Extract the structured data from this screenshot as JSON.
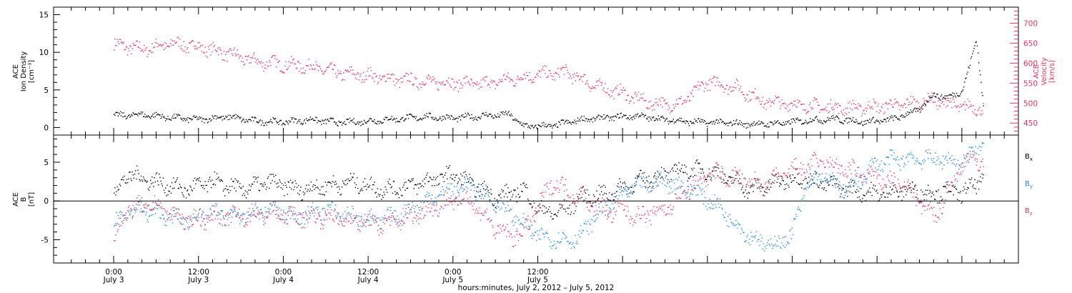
{
  "chart_data": [
    {
      "type": "scatter",
      "panel": "top",
      "ylabel_left": [
        "ACE",
        "Ion Density",
        "[cm⁻³]"
      ],
      "ylabel_right": [
        "ACE",
        "Velocity",
        "[km/s]"
      ],
      "ylim_left": [
        -1,
        16
      ],
      "ylim_right": [
        420,
        740
      ],
      "yticks_left": [
        "0",
        "5",
        "10",
        "15"
      ],
      "yticks_right": [
        "450",
        "500",
        "550",
        "600",
        "650",
        "700"
      ],
      "colors": {
        "density": "#000000",
        "velocity": "#e8315c"
      },
      "series": [
        {
          "name": "Ion Density",
          "axis": "left",
          "color": "#000000",
          "x_hours": [
            0,
            4,
            8,
            12,
            16,
            20,
            24,
            28,
            32,
            36,
            40,
            44,
            48,
            52,
            56,
            58,
            62,
            66,
            70,
            74,
            78,
            82,
            86,
            90,
            94,
            98,
            102,
            106,
            110,
            114,
            116,
            118,
            120,
            121,
            122,
            123
          ],
          "values": [
            1.6,
            1.8,
            1.4,
            1.1,
            1.5,
            0.9,
            0.8,
            1.1,
            0.7,
            0.9,
            1.2,
            1.5,
            1.3,
            1.6,
            1.8,
            0.2,
            0.3,
            1.1,
            1.4,
            1.6,
            1.1,
            0.8,
            0.7,
            0.5,
            0.6,
            1.0,
            1.2,
            0.8,
            1.1,
            2.5,
            4.5,
            4.0,
            5.0,
            8.0,
            12.0,
            3.0
          ]
        },
        {
          "name": "Velocity",
          "axis": "right",
          "color": "#e8315c",
          "x_hours": [
            0,
            4,
            8,
            12,
            16,
            20,
            24,
            28,
            32,
            36,
            40,
            44,
            48,
            52,
            56,
            60,
            64,
            68,
            72,
            76,
            80,
            84,
            88,
            92,
            96,
            100,
            104,
            108,
            112,
            116,
            120,
            123
          ],
          "values": [
            648,
            635,
            650,
            642,
            625,
            605,
            598,
            592,
            575,
            570,
            560,
            555,
            552,
            548,
            560,
            572,
            578,
            545,
            525,
            500,
            498,
            555,
            540,
            505,
            498,
            492,
            488,
            492,
            498,
            508,
            492,
            488
          ]
        }
      ]
    },
    {
      "type": "scatter",
      "panel": "bottom",
      "ylabel_left": [
        "ACE",
        "B",
        "[nT]"
      ],
      "ylim": [
        -8,
        8.5
      ],
      "yticks": [
        "-5",
        "0",
        "5"
      ],
      "legend": {
        "position": "right",
        "entries": [
          {
            "label": "B",
            "sub": "x",
            "color": "#000000"
          },
          {
            "label": "B",
            "sub": "y",
            "color": "#1e88e5"
          },
          {
            "label": "B",
            "sub": "z",
            "color": "#e8315c"
          }
        ]
      },
      "series": [
        {
          "name": "Bx",
          "color": "#000000",
          "x_hours": [
            0,
            2,
            6,
            10,
            14,
            18,
            22,
            26,
            30,
            34,
            38,
            42,
            44,
            46,
            48,
            50,
            54,
            58,
            60,
            62,
            64,
            66,
            70,
            74,
            78,
            80,
            84,
            88,
            90,
            92,
            96,
            100,
            104,
            108,
            112,
            116,
            118,
            120,
            123
          ],
          "values": [
            1.0,
            3.5,
            2.5,
            1.5,
            2.5,
            1.5,
            2.5,
            1.5,
            2.0,
            2.5,
            1.5,
            2.0,
            2.5,
            3.0,
            3.5,
            2.5,
            0.5,
            1.5,
            -1.0,
            -1.5,
            -1.0,
            0.5,
            1.0,
            2.5,
            3.5,
            4.0,
            4.0,
            2.5,
            1.5,
            2.0,
            3.0,
            2.5,
            1.5,
            1.0,
            1.5,
            1.0,
            1.5,
            1.0,
            3.0
          ]
        },
        {
          "name": "By",
          "color": "#1e88e5",
          "x_hours": [
            0,
            2,
            6,
            10,
            14,
            18,
            22,
            26,
            30,
            34,
            38,
            42,
            46,
            50,
            54,
            58,
            60,
            64,
            66,
            68,
            70,
            72,
            74,
            78,
            82,
            86,
            88,
            90,
            92,
            94,
            96,
            98,
            100,
            104,
            108,
            112,
            116,
            120,
            123
          ],
          "values": [
            -3.0,
            -1.0,
            -1.5,
            -2.5,
            -1.5,
            -2.0,
            -1.0,
            -2.0,
            -1.0,
            -2.0,
            -2.5,
            -1.0,
            1.0,
            2.0,
            0.0,
            -3.0,
            -4.5,
            -5.0,
            -4.5,
            -2.0,
            -0.5,
            1.0,
            2.0,
            2.5,
            1.5,
            -1.0,
            -3.0,
            -4.5,
            -5.5,
            -5.5,
            -4.0,
            2.0,
            3.0,
            1.5,
            5.0,
            5.5,
            5.5,
            5.0,
            7.5
          ]
        },
        {
          "name": "Bz",
          "color": "#e8315c",
          "x_hours": [
            0,
            2,
            6,
            10,
            14,
            18,
            22,
            26,
            30,
            34,
            38,
            42,
            46,
            50,
            54,
            56,
            58,
            62,
            66,
            70,
            72,
            74,
            78,
            82,
            84,
            86,
            88,
            92,
            96,
            100,
            104,
            108,
            112,
            114,
            116,
            118,
            120,
            122,
            123
          ],
          "values": [
            -4.5,
            -1.0,
            -0.5,
            -2.5,
            -2.0,
            -2.0,
            -1.5,
            -2.0,
            -2.0,
            -2.5,
            -3.0,
            -2.0,
            -0.5,
            0.5,
            -3.5,
            -4.5,
            -4.0,
            2.5,
            0.5,
            -1.5,
            -1.0,
            -2.0,
            -1.0,
            2.0,
            3.5,
            3.5,
            3.0,
            2.0,
            4.0,
            5.0,
            4.0,
            3.0,
            2.0,
            0.0,
            -2.0,
            1.0,
            5.0,
            5.5,
            5.0
          ]
        }
      ]
    },
    {
      "type": "axis",
      "x_range_hours": [
        -8.5,
        128
      ],
      "x_ticks": [
        {
          "hour": 0,
          "time": "0:00",
          "date": "July 3"
        },
        {
          "hour": 12,
          "time": "12:00",
          "date": "July 3"
        },
        {
          "hour": 24,
          "time": "0:00",
          "date": "July 4"
        },
        {
          "hour": 36,
          "time": "12:00",
          "date": "July 4"
        },
        {
          "hour": 48,
          "time": "0:00",
          "date": "July 5"
        },
        {
          "hour": 60,
          "time": "12:00",
          "date": "July 5"
        }
      ],
      "xlabel": "hours:minutes,  July  2, 2012 – July  5, 2012"
    }
  ]
}
